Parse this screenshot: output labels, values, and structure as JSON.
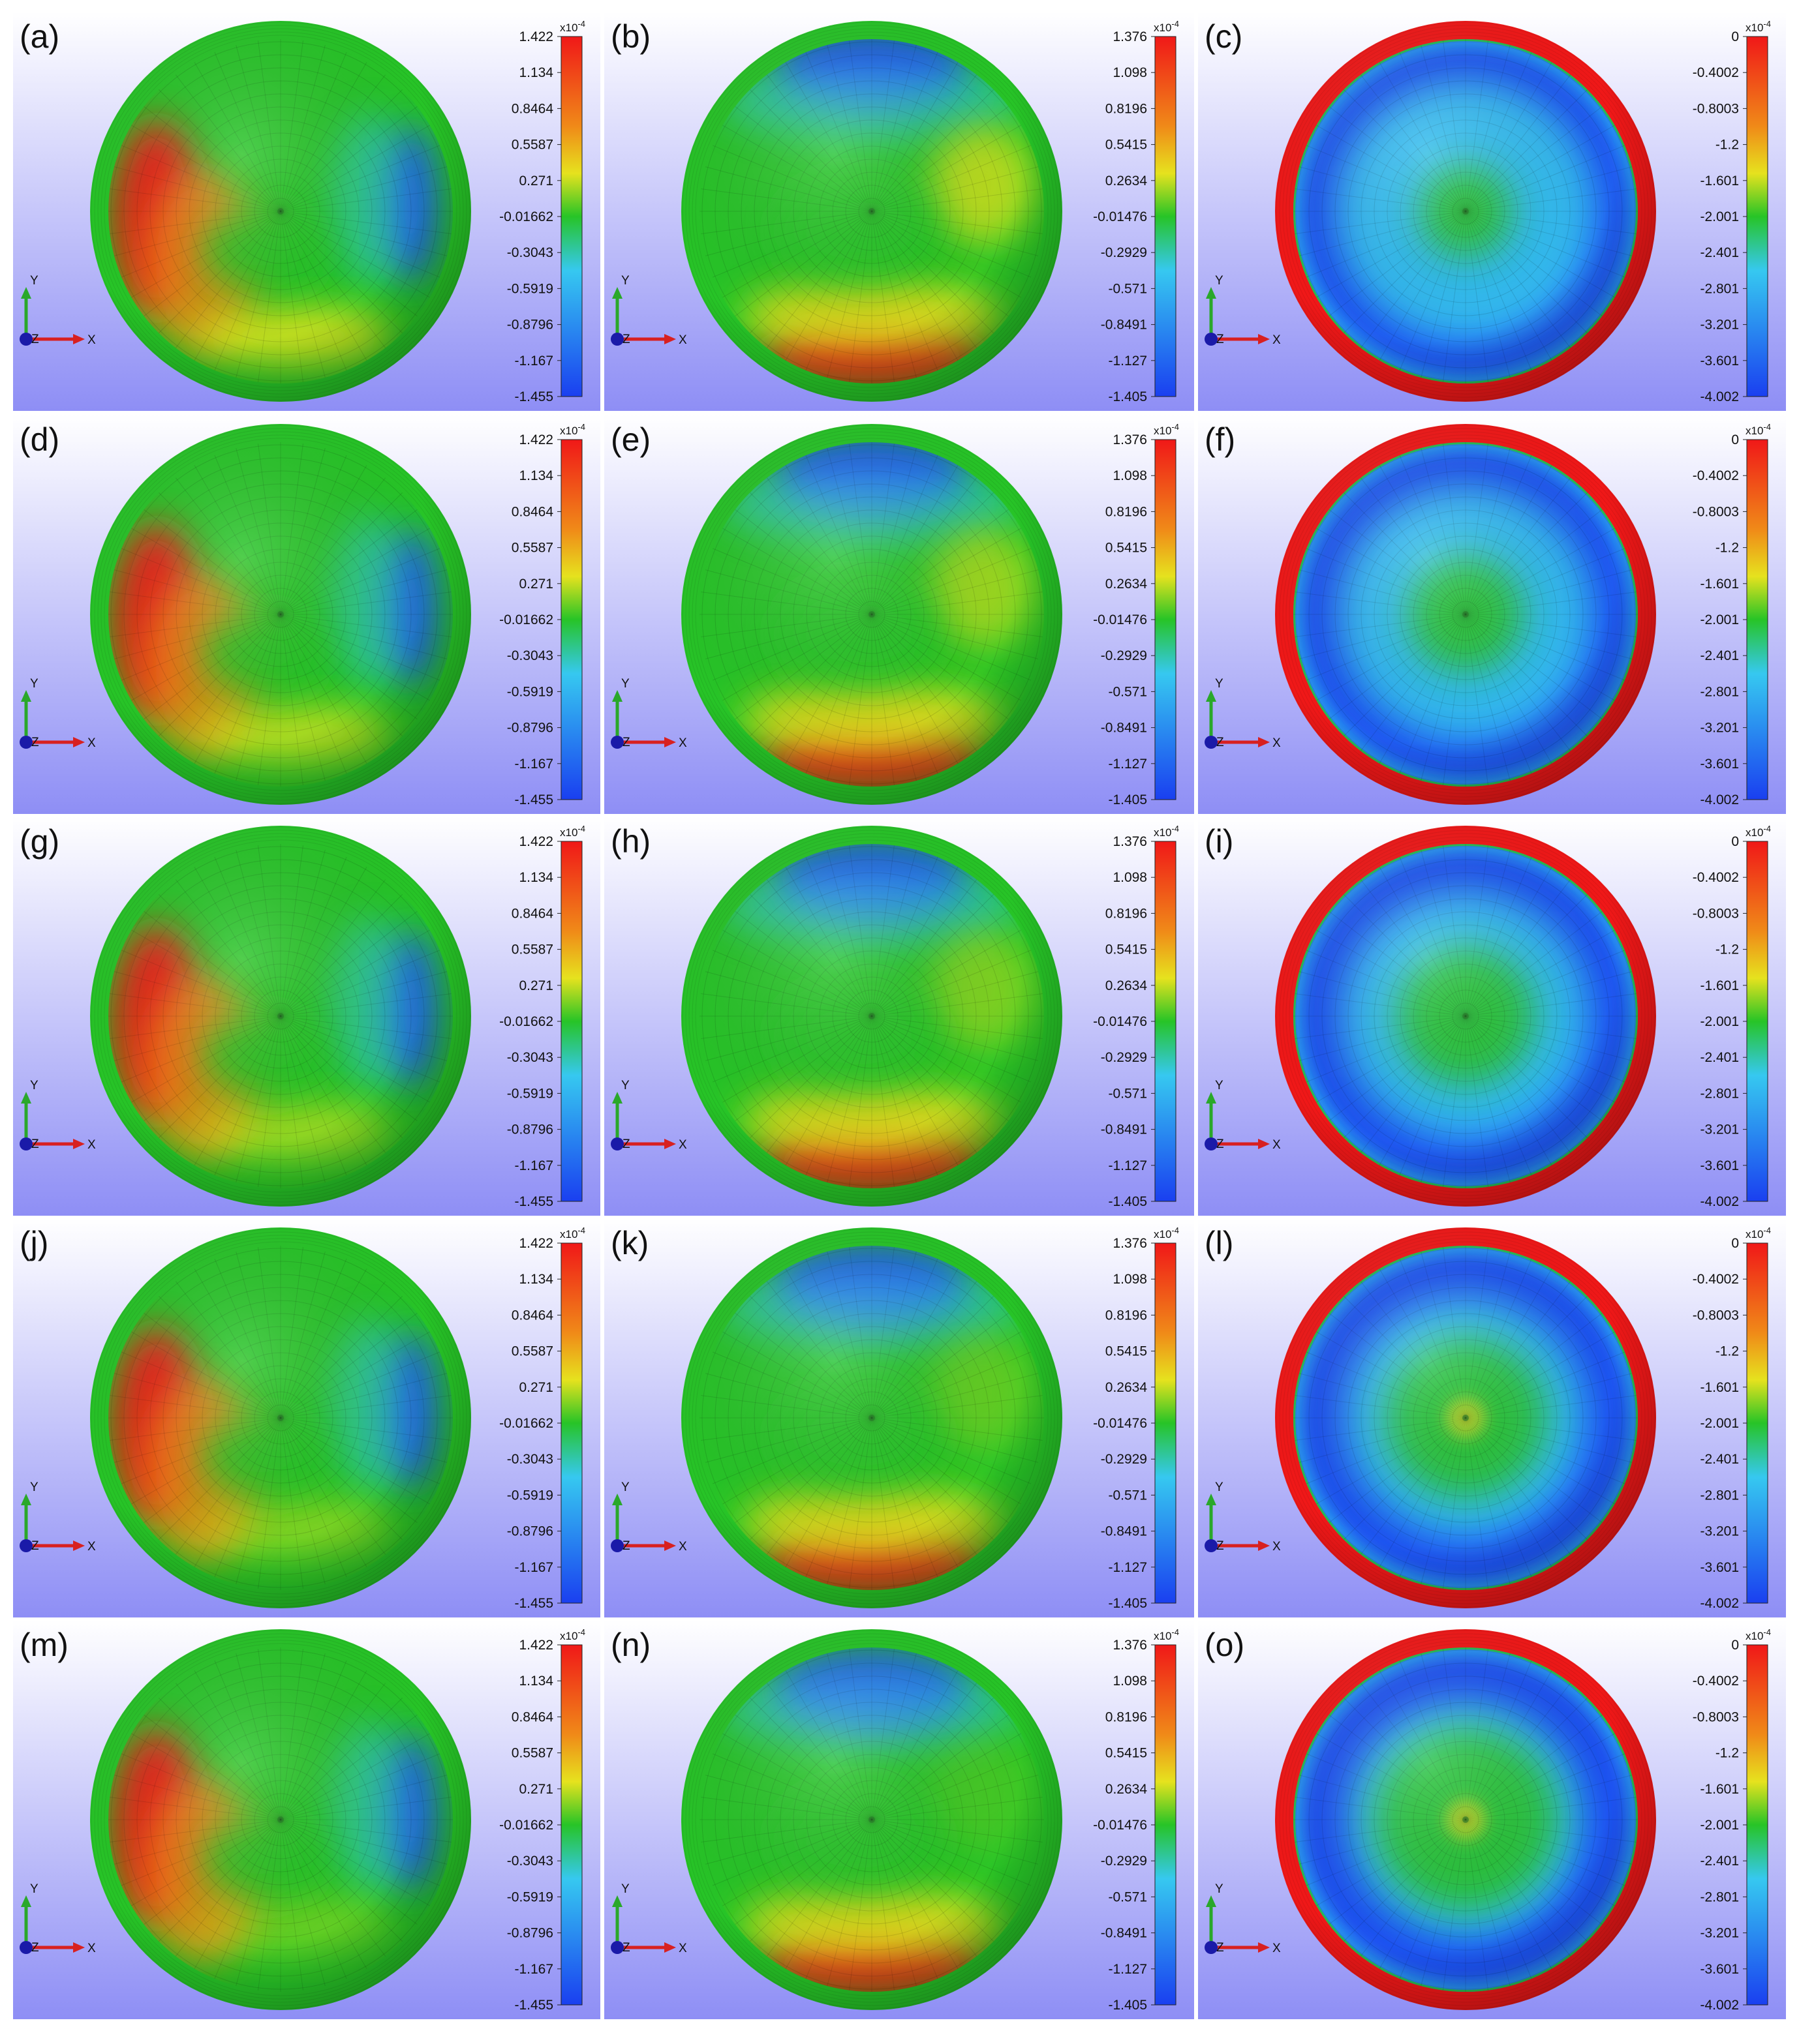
{
  "figure": {
    "columns": [
      {
        "id": "col1",
        "colorbar": {
          "exponent": "x10",
          "exponent_power": "-4",
          "ticks": [
            "1.422",
            "1.134",
            "0.8464",
            "0.5587",
            "0.271",
            "-0.01662",
            "-0.3043",
            "-0.5919",
            "-0.8796",
            "-1.167",
            "-1.455"
          ]
        }
      },
      {
        "id": "col2",
        "colorbar": {
          "exponent": "x10",
          "exponent_power": "-4",
          "ticks": [
            "1.376",
            "1.098",
            "0.8196",
            "0.5415",
            "0.2634",
            "-0.01476",
            "-0.2929",
            "-0.571",
            "-0.8491",
            "-1.127",
            "-1.405"
          ]
        }
      },
      {
        "id": "col3",
        "colorbar": {
          "exponent": "x10",
          "exponent_power": "-4",
          "ticks": [
            "0",
            "-0.4002",
            "-0.8003",
            "-1.2",
            "-1.601",
            "-2.001",
            "-2.401",
            "-2.801",
            "-3.201",
            "-3.601",
            "-4.002"
          ]
        }
      }
    ],
    "panel_labels": [
      [
        "(a)",
        "(b)",
        "(c)"
      ],
      [
        "(d)",
        "(e)",
        "(f)"
      ],
      [
        "(g)",
        "(h)",
        "(i)"
      ],
      [
        "(j)",
        "(k)",
        "(l)"
      ],
      [
        "(m)",
        "(n)",
        "(o)"
      ]
    ],
    "axes": {
      "x": "X",
      "y": "Y",
      "z": "Z"
    },
    "colors": {
      "bg_top": "#ffffff",
      "bg_bottom": "#8e8ef5",
      "green": "#27c427",
      "red": "#f01818",
      "blue": "#1a3ff0",
      "cyan": "#36c8f0",
      "yellow": "#e6e21e",
      "orange": "#f08a18"
    }
  }
}
